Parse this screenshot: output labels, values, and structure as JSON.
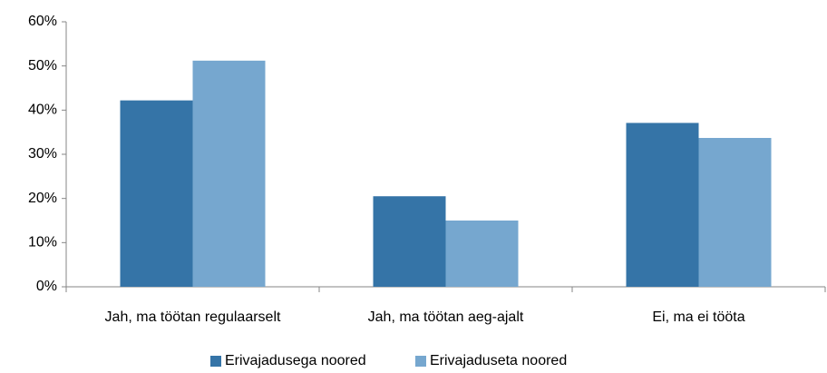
{
  "chart_data": {
    "type": "bar",
    "categories": [
      "Jah, ma töötan regulaarselt",
      "Jah, ma töötan aeg-ajalt",
      "Ei, ma ei tööta"
    ],
    "series": [
      {
        "name": "Erivajadusega noored",
        "color": "#3574a7",
        "values": [
          42.2,
          20.5,
          37.1
        ]
      },
      {
        "name": "Erivajaduseta noored",
        "color": "#76a7cf",
        "values": [
          51.2,
          15.0,
          33.7
        ]
      }
    ],
    "ylim": [
      0,
      60
    ],
    "yticks": [
      {
        "value": 0,
        "label": "0%"
      },
      {
        "value": 10,
        "label": "10%"
      },
      {
        "value": 20,
        "label": "20%"
      },
      {
        "value": 30,
        "label": "30%"
      },
      {
        "value": 40,
        "label": "40%"
      },
      {
        "value": 50,
        "label": "50%"
      },
      {
        "value": 60,
        "label": "60%"
      }
    ],
    "grid": false,
    "legend": "bottom"
  }
}
